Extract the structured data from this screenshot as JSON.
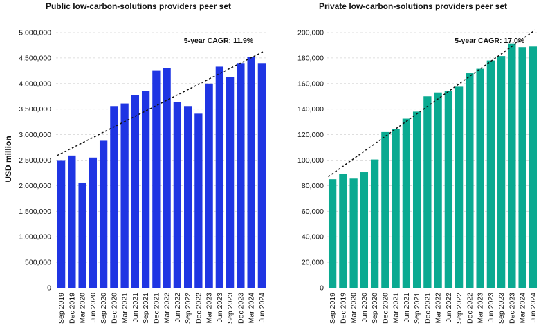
{
  "chart_data": [
    {
      "type": "bar",
      "title": "Public low-carbon-solutions providers peer set",
      "ylabel": "USD million",
      "xlabel": "",
      "categories": [
        "Sep 2019",
        "Dec 2019",
        "Mar 2020",
        "Jun 2020",
        "Sep 2020",
        "Dec 2020",
        "Mar 2021",
        "Jun 2021",
        "Sep 2021",
        "Dec 2021",
        "Mar 2022",
        "Jun 2022",
        "Sep 2022",
        "Dec 2022",
        "Mar 2023",
        "Jun 2023",
        "Sep 2023",
        "Dec 2023",
        "Mar 2024",
        "Jun 2024"
      ],
      "values": [
        2500000,
        2590000,
        2060000,
        2550000,
        2880000,
        3560000,
        3610000,
        3780000,
        3850000,
        4260000,
        4300000,
        3640000,
        3560000,
        3410000,
        4000000,
        4330000,
        4120000,
        4400000,
        4520000,
        4400000
      ],
      "ylim": [
        0,
        5000000
      ],
      "yticks": [
        0,
        500000,
        1000000,
        1500000,
        2000000,
        2500000,
        3000000,
        3500000,
        4000000,
        4500000,
        5000000
      ],
      "ytick_labels": [
        "0",
        "500,000",
        "1,000,000",
        "1,500,000",
        "2,000,000",
        "2,500,000",
        "3,000,000",
        "3,500,000",
        "4,000,000",
        "4,500,000",
        "5,000,000"
      ],
      "trend": {
        "start": 2590000,
        "end": 4630000
      },
      "annotation": "5-year CAGR: 11.9%",
      "color": "#1f35e3"
    },
    {
      "type": "bar",
      "title": "Private low-carbon-solutions providers peer set",
      "ylabel": "",
      "xlabel": "",
      "categories": [
        "Sep 2019",
        "Dec 2019",
        "Mar 2020",
        "Jun 2020",
        "Sep 2020",
        "Dec 2020",
        "Mar 2021",
        "Jun 2021",
        "Sep 2021",
        "Dec 2021",
        "Mar 2022",
        "Jun 2022",
        "Sep 2022",
        "Dec 2022",
        "Mar 2023",
        "Jun 2023",
        "Sep 2023",
        "Dec 2023",
        "Mar 2024",
        "Jun 2024"
      ],
      "values": [
        85000,
        89000,
        85500,
        90500,
        100500,
        122000,
        124500,
        132500,
        138000,
        150000,
        153000,
        154000,
        157500,
        168000,
        171500,
        178000,
        181500,
        191500,
        188500,
        189000
      ],
      "ylim": [
        0,
        200000
      ],
      "yticks": [
        0,
        20000,
        40000,
        60000,
        80000,
        100000,
        120000,
        140000,
        160000,
        180000,
        200000
      ],
      "ytick_labels": [
        "0",
        "20,000",
        "40,000",
        "60,000",
        "80,000",
        "100,000",
        "120,000",
        "140,000",
        "160,000",
        "180,000",
        "200,000"
      ],
      "trend": {
        "start": 87000,
        "end": 202000
      },
      "annotation": "5-year CAGR: 17.0%",
      "color": "#0aaa91"
    }
  ]
}
